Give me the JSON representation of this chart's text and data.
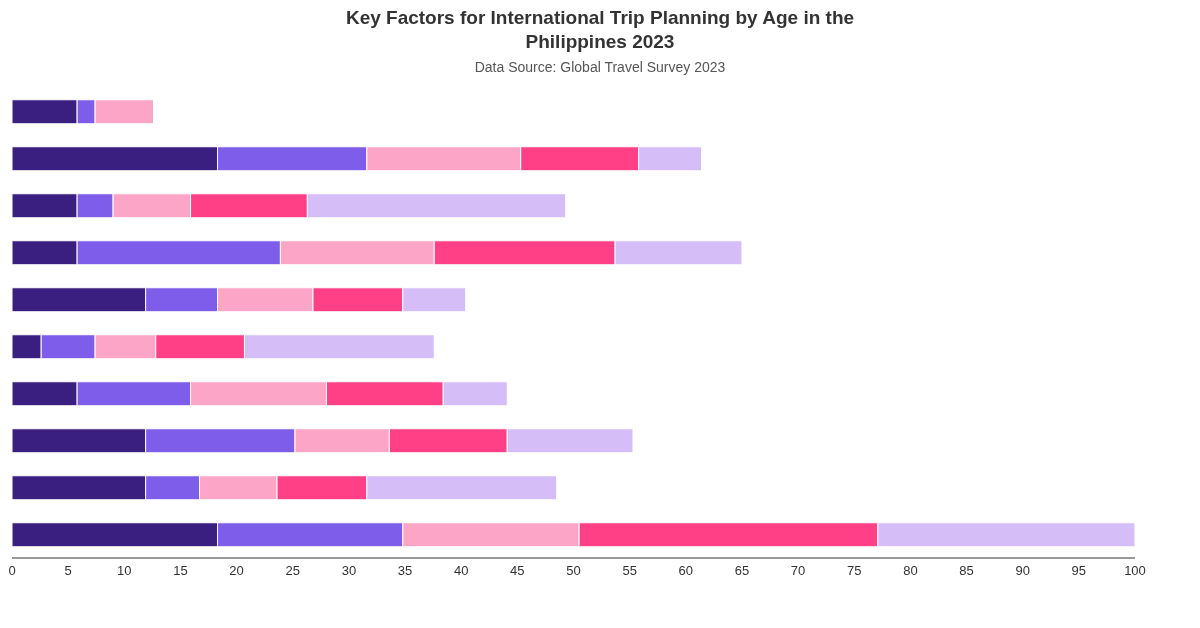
{
  "chart_data": {
    "type": "bar",
    "orientation": "horizontal",
    "stacked": true,
    "title": "Key Factors for International Trip Planning by Age in the Philippines 2023",
    "subtitle": "Data Source: Global Travel Survey 2023",
    "categories": [
      null,
      null,
      null,
      null,
      null,
      null,
      null,
      null,
      null,
      null
    ],
    "series": [
      {
        "color": "#3a1f80",
        "values": [
          5.8,
          18.3,
          5.8,
          5.8,
          11.9,
          2.6,
          5.8,
          11.9,
          11.9,
          18.3
        ]
      },
      {
        "color": "#7d5de9",
        "values": [
          1.6,
          13.3,
          3.2,
          18.1,
          6.4,
          4.8,
          10.1,
          13.3,
          4.8,
          16.5
        ]
      },
      {
        "color": "#fda5c6",
        "values": [
          5.2,
          13.7,
          6.9,
          13.7,
          8.5,
          5.4,
          12.1,
          8.4,
          6.9,
          15.7
        ]
      },
      {
        "color": "#ff4087",
        "values": [
          null,
          10.5,
          10.4,
          16.1,
          8.0,
          7.9,
          10.4,
          10.5,
          8.0,
          26.6
        ]
      },
      {
        "color": "#d5bdf8",
        "values": [
          null,
          5.6,
          23.0,
          11.3,
          5.6,
          16.9,
          5.7,
          11.2,
          16.9,
          22.9
        ]
      }
    ],
    "xlim": [
      0,
      100
    ],
    "xticks": [
      0,
      5,
      10,
      15,
      20,
      25,
      30,
      35,
      40,
      45,
      50,
      55,
      60,
      65,
      70,
      75,
      80,
      85,
      90,
      95,
      100
    ],
    "tick_labels": "x",
    "grid": false,
    "legend": false
  }
}
